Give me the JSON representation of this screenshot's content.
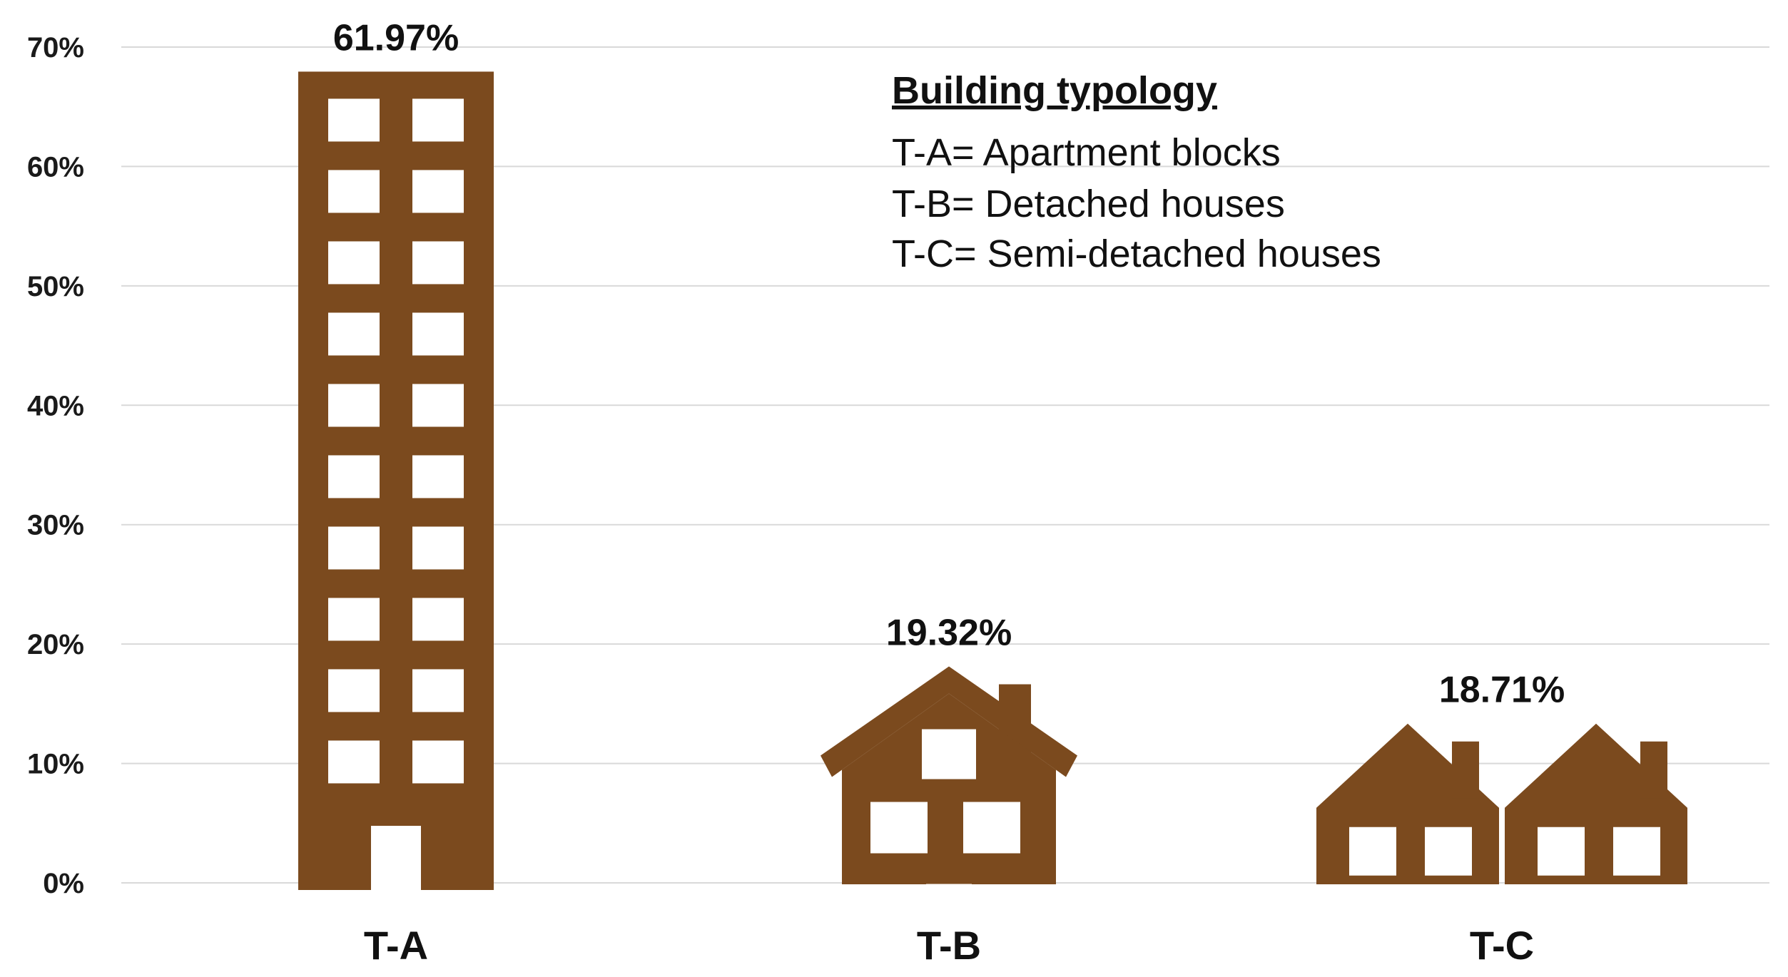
{
  "chart_data": {
    "type": "bar",
    "categories": [
      "T-A",
      "T-B",
      "T-C"
    ],
    "values": [
      61.97,
      19.32,
      18.71
    ],
    "data_labels": [
      "61.97%",
      "19.32%",
      "18.71%"
    ],
    "yticks": [
      0,
      10,
      20,
      30,
      40,
      50,
      60,
      70
    ],
    "ytick_labels": [
      "0%",
      "10%",
      "20%",
      "30%",
      "40%",
      "50%",
      "60%",
      "70%"
    ],
    "ylim": [
      0,
      70
    ],
    "grid": true,
    "title": "",
    "xlabel": "",
    "ylabel": "",
    "mark_shapes": [
      "apartment-block-icon",
      "detached-house-icon",
      "semi-detached-houses-icon"
    ],
    "colors": {
      "bar": "#7B4A1E",
      "grid": "#D9D9D9"
    }
  },
  "legend": {
    "title": "Building typology",
    "items": [
      "T-A= Apartment blocks",
      "T-B= Detached houses",
      "T-C= Semi-detached houses"
    ],
    "placement": "top-center"
  }
}
